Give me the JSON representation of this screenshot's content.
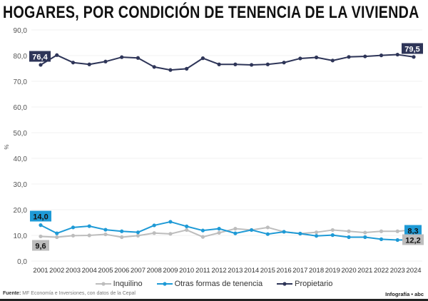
{
  "title": "HOGARES, POR CONDICIÓN DE TENENCIA DE LA VIVIENDA",
  "source_label": "Fuente:",
  "source_text": "MF Economía e Inversiones, con datos de la Cepal",
  "credit": "Infografía • abc",
  "chart_data": {
    "type": "line",
    "title": "HOGARES, POR CONDICIÓN DE TENENCIA DE LA VIVIENDA",
    "xlabel": "",
    "ylabel": "%",
    "ylim": [
      0,
      90
    ],
    "yticks": [
      "0,0",
      "10,0",
      "20,0",
      "30,0",
      "40,0",
      "50,0",
      "60,0",
      "70,0",
      "80,0",
      "90,0"
    ],
    "grid": true,
    "legend": "bottom",
    "categories": [
      "2001",
      "2002",
      "2003",
      "2004",
      "2005",
      "2006",
      "2007",
      "2008",
      "2009",
      "2010",
      "2011",
      "2012",
      "2013",
      "2014",
      "2015",
      "2016",
      "2017",
      "2018",
      "2019",
      "2020",
      "2021",
      "2022",
      "2023",
      "2024"
    ],
    "series": [
      {
        "name": "Inquilino",
        "color": "#bdbdbd",
        "label_color": "#111111",
        "values": [
          9.6,
          9.3,
          9.9,
          10.0,
          10.4,
          9.3,
          9.9,
          10.9,
          10.6,
          12.1,
          9.4,
          11.0,
          12.6,
          12.1,
          13.1,
          11.4,
          10.7,
          11.2,
          12.1,
          11.6,
          11.1,
          11.6,
          11.6,
          12.2
        ],
        "start_label": "9,6",
        "end_label": "12,2"
      },
      {
        "name": "Otras formas de tenencia",
        "color": "#1e9ad6",
        "label_color": "#111111",
        "values": [
          14.0,
          10.8,
          13.1,
          13.6,
          12.2,
          11.6,
          11.2,
          13.9,
          15.3,
          13.5,
          11.9,
          12.6,
          10.8,
          12.1,
          10.5,
          11.4,
          10.7,
          9.8,
          10.1,
          9.3,
          9.3,
          8.5,
          8.2,
          8.3
        ],
        "start_label": "14,0",
        "end_label": "8,3"
      },
      {
        "name": "Propietario",
        "color": "#2e3558",
        "label_color": "#ffffff",
        "values": [
          76.4,
          80.2,
          77.3,
          76.6,
          77.7,
          79.4,
          79.1,
          75.6,
          74.4,
          74.9,
          79.0,
          76.6,
          76.6,
          76.4,
          76.6,
          77.3,
          78.9,
          79.3,
          78.1,
          79.5,
          79.7,
          80.1,
          80.4,
          79.5
        ],
        "start_label": "76,4",
        "end_label": "79,5"
      }
    ]
  }
}
